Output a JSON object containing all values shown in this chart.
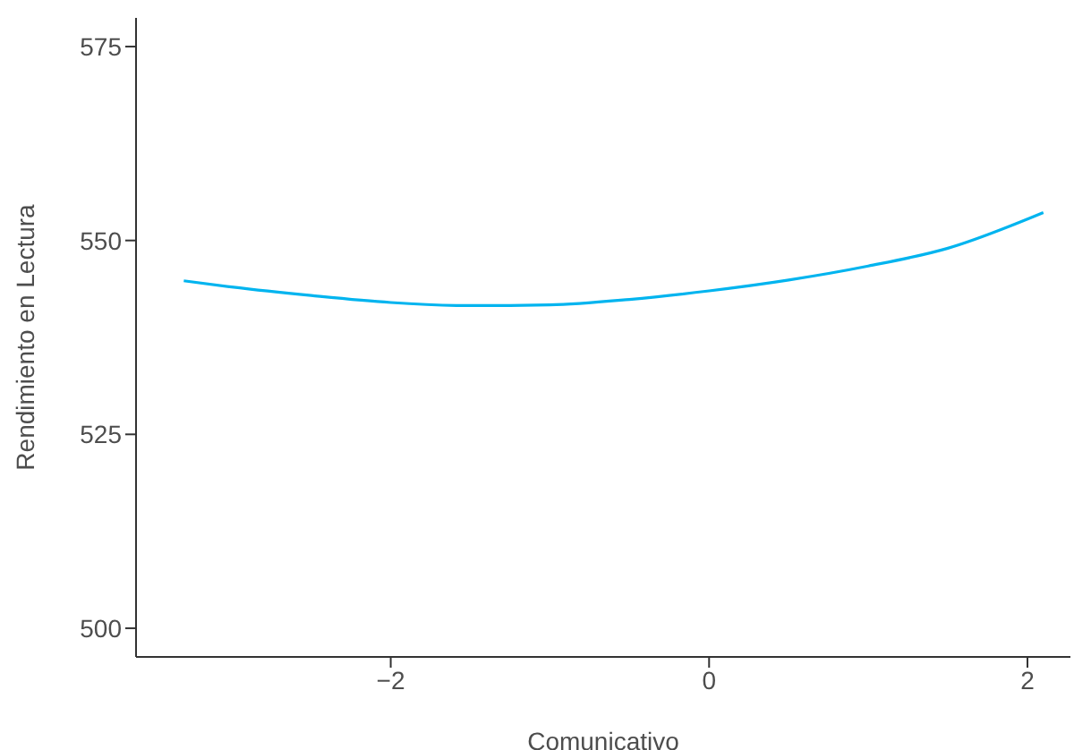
{
  "chart_data": {
    "type": "line",
    "xlabel": "Comunicativo",
    "ylabel": "Rendimiento en Lectura",
    "x": [
      -3.3,
      -3,
      -2.5,
      -2,
      -1.5,
      -1,
      -0.5,
      0,
      0.5,
      1,
      1.5,
      2.1
    ],
    "series": [
      {
        "color": "#00b4ef",
        "values": [
          544.8,
          544.0,
          542.9,
          542.0,
          541.6,
          541.7,
          542.4,
          543.5,
          544.9,
          546.7,
          549.0,
          553.6
        ]
      }
    ],
    "xlim": [
      -3.6,
      2.27
    ],
    "xticks": [
      {
        "value": -2,
        "label": "−2"
      },
      0,
      2
    ],
    "ylim": [
      496.3,
      578.7
    ],
    "yticks": [
      500,
      525,
      550,
      575
    ],
    "grid": false,
    "legend": false,
    "marker": "none",
    "line_style": "solid"
  }
}
